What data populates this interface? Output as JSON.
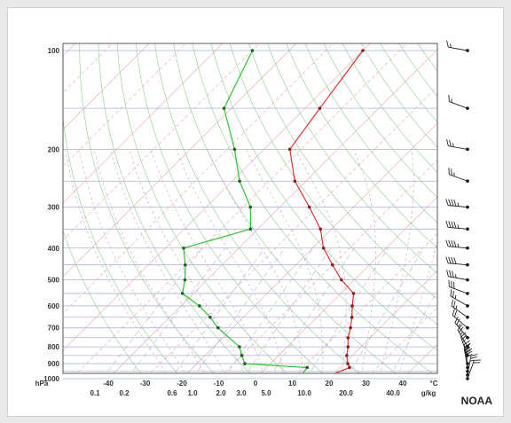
{
  "chart_data": {
    "type": "line",
    "subtype": "skew-t log-p diagram",
    "y_axis": {
      "unit": "hPa",
      "ticks": [
        100,
        200,
        300,
        400,
        500,
        600,
        700,
        800,
        900,
        1000
      ],
      "scale": "log",
      "range": [
        1000,
        100
      ]
    },
    "x_axis_temperature": {
      "unit": "°C",
      "ticks": [
        -40,
        -30,
        -20,
        -10,
        0,
        10,
        20,
        30,
        40
      ],
      "skewed": true
    },
    "x_axis_mixing_ratio": {
      "unit": "g/kg",
      "ticks": [
        "0.1",
        "0.2",
        "0.6",
        "1.0",
        "2.0",
        "3.0",
        "5.0",
        "10.0",
        "20.0",
        "40.0"
      ]
    },
    "grid": true,
    "series": [
      {
        "color": "#e03030",
        "points": [
          {
            "p": 1000,
            "t": 15.0
          },
          {
            "p": 975,
            "t": 19.5
          },
          {
            "p": 925,
            "t": 22.5
          },
          {
            "p": 900,
            "t": 21.0
          },
          {
            "p": 850,
            "t": 18.5
          },
          {
            "p": 800,
            "t": 16.5
          },
          {
            "p": 750,
            "t": 14.0
          },
          {
            "p": 700,
            "t": 12.0
          },
          {
            "p": 650,
            "t": 9.5
          },
          {
            "p": 600,
            "t": 6.5
          },
          {
            "p": 550,
            "t": 3.5
          },
          {
            "p": 500,
            "t": -3.5
          },
          {
            "p": 450,
            "t": -10.0
          },
          {
            "p": 400,
            "t": -17.0
          },
          {
            "p": 350,
            "t": -23.0
          },
          {
            "p": 300,
            "t": -32.0
          },
          {
            "p": 250,
            "t": -43.0
          },
          {
            "p": 200,
            "t": -53.0
          },
          {
            "p": 150,
            "t": -56.0
          },
          {
            "p": 100,
            "t": -60.0
          }
        ]
      },
      {
        "color": "#30c030",
        "points": [
          {
            "p": 1000,
            "t": 12.0
          },
          {
            "p": 975,
            "t": 11.5
          },
          {
            "p": 925,
            "t": 11.0
          },
          {
            "p": 900,
            "t": -7.0
          },
          {
            "p": 850,
            "t": -10.0
          },
          {
            "p": 800,
            "t": -13.0
          },
          {
            "p": 700,
            "t": -24.0
          },
          {
            "p": 650,
            "t": -29.0
          },
          {
            "p": 600,
            "t": -35.0
          },
          {
            "p": 550,
            "t": -43.0
          },
          {
            "p": 500,
            "t": -46.0
          },
          {
            "p": 450,
            "t": -50.0
          },
          {
            "p": 400,
            "t": -55.0
          },
          {
            "p": 350,
            "t": -42.0
          },
          {
            "p": 300,
            "t": -48.0
          },
          {
            "p": 250,
            "t": -58.0
          },
          {
            "p": 200,
            "t": -68.0
          },
          {
            "p": 150,
            "t": -82.0
          },
          {
            "p": 100,
            "t": -90.0
          }
        ]
      }
    ],
    "wind_barbs": [
      {
        "p": 100,
        "speed_kt": 15,
        "dir": 280
      },
      {
        "p": 150,
        "speed_kt": 15,
        "dir": 290
      },
      {
        "p": 200,
        "speed_kt": 25,
        "dir": 280
      },
      {
        "p": 250,
        "speed_kt": 25,
        "dir": 290
      },
      {
        "p": 300,
        "speed_kt": 45,
        "dir": 275
      },
      {
        "p": 350,
        "speed_kt": 45,
        "dir": 275
      },
      {
        "p": 400,
        "speed_kt": 45,
        "dir": 275
      },
      {
        "p": 450,
        "speed_kt": 40,
        "dir": 275
      },
      {
        "p": 500,
        "speed_kt": 35,
        "dir": 280
      },
      {
        "p": 550,
        "speed_kt": 30,
        "dir": 290
      },
      {
        "p": 600,
        "speed_kt": 25,
        "dir": 300
      },
      {
        "p": 650,
        "speed_kt": 25,
        "dir": 305
      },
      {
        "p": 700,
        "speed_kt": 20,
        "dir": 310
      },
      {
        "p": 750,
        "speed_kt": 25,
        "dir": 320
      },
      {
        "p": 800,
        "speed_kt": 25,
        "dir": 330
      },
      {
        "p": 850,
        "speed_kt": 25,
        "dir": 340
      },
      {
        "p": 900,
        "speed_kt": 25,
        "dir": 350
      },
      {
        "p": 925,
        "speed_kt": 30,
        "dir": 350
      },
      {
        "p": 950,
        "speed_kt": 30,
        "dir": 355
      },
      {
        "p": 975,
        "speed_kt": 25,
        "dir": 10
      },
      {
        "p": 1000,
        "speed_kt": 20,
        "dir": 20
      }
    ]
  },
  "brand": "NOAA"
}
